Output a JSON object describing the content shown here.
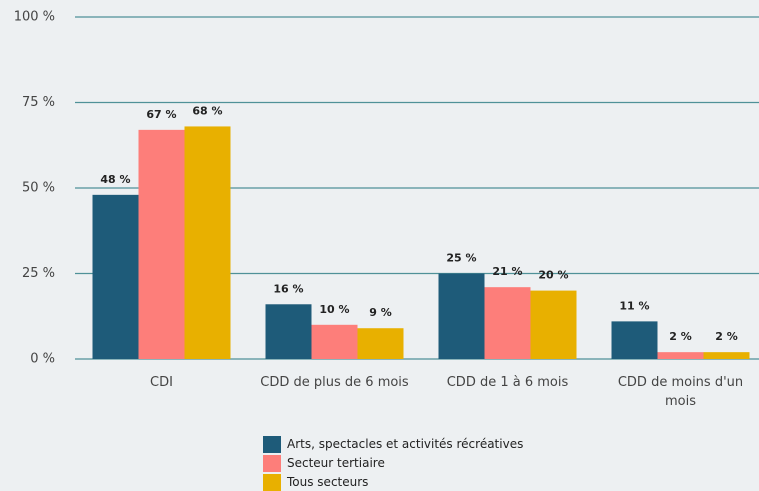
{
  "chart_data": {
    "type": "bar",
    "categories": [
      "CDI",
      "CDD de plus de 6 mois",
      "CDD de 1 à 6 mois",
      "CDD de moins d'un mois"
    ],
    "series": [
      {
        "name": "Arts, spectacles et activités récréatives",
        "color": "#1e5b79",
        "values": [
          48,
          16,
          25,
          11
        ],
        "value_labels": [
          "48 %",
          "16 %",
          "25 %",
          "11 %"
        ]
      },
      {
        "name": "Secteur tertiaire",
        "color": "#fd7e7a",
        "values": [
          67,
          10,
          21,
          2
        ],
        "value_labels": [
          "67 %",
          "10 %",
          "21 %",
          "2 %"
        ]
      },
      {
        "name": "Tous secteurs",
        "color": "#e8b000",
        "values": [
          68,
          9,
          20,
          2
        ],
        "value_labels": [
          "68 %",
          "9 %",
          "20 %",
          "2 %"
        ]
      }
    ],
    "ylim": [
      0,
      100
    ],
    "yticks": [
      {
        "value": 0,
        "label": "0 %"
      },
      {
        "value": 25,
        "label": "25 %"
      },
      {
        "value": 50,
        "label": "50 %"
      },
      {
        "value": 75,
        "label": "75 %"
      },
      {
        "value": 100,
        "label": "100 %"
      }
    ],
    "grid": true
  }
}
